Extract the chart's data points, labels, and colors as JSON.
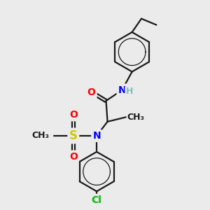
{
  "bg_color": "#ebebeb",
  "bond_color": "#1a1a1a",
  "bond_width": 1.6,
  "atom_colors": {
    "N": "#0000ff",
    "O": "#ff0000",
    "S": "#cccc00",
    "Cl": "#00bb00",
    "H": "#7fbfbf",
    "C": "#1a1a1a"
  },
  "font_size": 10
}
